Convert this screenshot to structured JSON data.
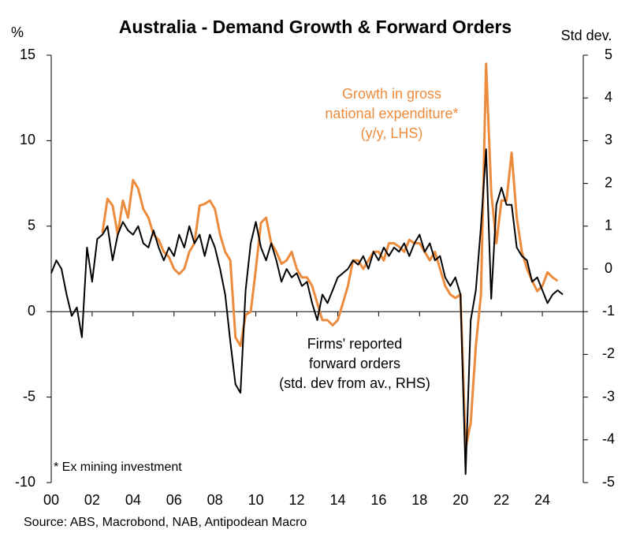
{
  "chart_data": {
    "type": "line",
    "title": "Australia - Demand Growth & Forward Orders",
    "y_label": "%",
    "y2_label": "Std dev.",
    "footnote": "* Ex mining investment",
    "source": "Source: ABS, Macrobond, NAB, Antipodean Macro",
    "xlim": [
      2000,
      2026
    ],
    "xticks": [
      {
        "value": 2000,
        "label": "00"
      },
      {
        "value": 2002,
        "label": "02"
      },
      {
        "value": 2004,
        "label": "04"
      },
      {
        "value": 2006,
        "label": "06"
      },
      {
        "value": 2008,
        "label": "08"
      },
      {
        "value": 2010,
        "label": "10"
      },
      {
        "value": 2012,
        "label": "12"
      },
      {
        "value": 2014,
        "label": "14"
      },
      {
        "value": 2016,
        "label": "16"
      },
      {
        "value": 2018,
        "label": "18"
      },
      {
        "value": 2020,
        "label": "20"
      },
      {
        "value": 2022,
        "label": "22"
      },
      {
        "value": 2024,
        "label": "24"
      }
    ],
    "ylim": [
      -10,
      15
    ],
    "yticks": [
      15,
      10,
      5,
      0,
      -5,
      -10
    ],
    "y2lim": [
      -5,
      5
    ],
    "y2ticks": [
      5,
      4,
      3,
      2,
      1,
      0,
      -1,
      -2,
      -3,
      -4,
      -5
    ],
    "series": [
      {
        "name": [
          "Growth in gross",
          "national expenditure*",
          "(y/y, LHS)"
        ],
        "color": "#ed8b3d",
        "axis": "y",
        "x": [
          2002.5,
          2002.75,
          2003,
          2003.25,
          2003.5,
          2003.75,
          2004,
          2004.25,
          2004.5,
          2004.75,
          2005,
          2005.25,
          2005.5,
          2005.75,
          2006,
          2006.25,
          2006.5,
          2006.75,
          2007,
          2007.25,
          2007.5,
          2007.75,
          2008,
          2008.25,
          2008.5,
          2008.75,
          2009,
          2009.25,
          2009.5,
          2009.75,
          2010,
          2010.25,
          2010.5,
          2010.75,
          2011,
          2011.25,
          2011.5,
          2011.75,
          2012,
          2012.25,
          2012.5,
          2012.75,
          2013,
          2013.25,
          2013.5,
          2013.75,
          2014,
          2014.25,
          2014.5,
          2014.75,
          2015,
          2015.25,
          2015.5,
          2015.75,
          2016,
          2016.25,
          2016.5,
          2016.75,
          2017,
          2017.25,
          2017.5,
          2017.75,
          2018,
          2018.25,
          2018.5,
          2018.75,
          2019,
          2019.25,
          2019.5,
          2019.75,
          2020,
          2020.25,
          2020.5,
          2020.75,
          2021,
          2021.25,
          2021.5,
          2021.75,
          2022,
          2022.25,
          2022.5,
          2022.75,
          2023,
          2023.25,
          2023.5,
          2023.75,
          2024,
          2024.25,
          2024.5,
          2024.75
        ],
        "values": [
          4.6,
          6.6,
          6.2,
          4.5,
          6.5,
          5.5,
          7.7,
          7.2,
          6.0,
          5.5,
          4.5,
          4.2,
          3.5,
          3.2,
          2.5,
          2.2,
          2.5,
          3.5,
          4.0,
          6.2,
          6.3,
          6.5,
          6.0,
          4.5,
          3.5,
          3.0,
          -1.5,
          -2.0,
          -0.2,
          0.0,
          2.5,
          5.2,
          5.5,
          4.0,
          3.5,
          2.8,
          3.0,
          3.5,
          2.5,
          2.0,
          2.0,
          1.5,
          0.5,
          -0.5,
          -0.5,
          -0.8,
          -0.5,
          0.5,
          1.5,
          3.0,
          3.0,
          2.5,
          3.0,
          3.5,
          3.5,
          3.0,
          4.0,
          4.0,
          3.8,
          3.5,
          4.2,
          4.0,
          4.0,
          3.5,
          3.0,
          3.5,
          2.5,
          1.5,
          1.0,
          0.8,
          1.0,
          -8.0,
          -6.5,
          -2.0,
          1.0,
          14.5,
          7.0,
          4.0,
          6.5,
          6.5,
          9.3,
          5.5,
          3.5,
          2.5,
          1.8,
          1.2,
          1.5,
          2.3,
          2.0,
          1.8
        ]
      },
      {
        "name": [
          "Firms' reported",
          "forward orders",
          "(std. dev from av., RHS)"
        ],
        "color": "#000000",
        "axis": "y2",
        "x": [
          2000,
          2000.25,
          2000.5,
          2000.75,
          2001,
          2001.25,
          2001.5,
          2001.75,
          2002,
          2002.25,
          2002.5,
          2002.75,
          2003,
          2003.25,
          2003.5,
          2003.75,
          2004,
          2004.25,
          2004.5,
          2004.75,
          2005,
          2005.25,
          2005.5,
          2005.75,
          2006,
          2006.25,
          2006.5,
          2006.75,
          2007,
          2007.25,
          2007.5,
          2007.75,
          2008,
          2008.25,
          2008.5,
          2008.75,
          2009,
          2009.25,
          2009.5,
          2009.75,
          2010,
          2010.25,
          2010.5,
          2010.75,
          2011,
          2011.25,
          2011.5,
          2011.75,
          2012,
          2012.25,
          2012.5,
          2012.75,
          2013,
          2013.25,
          2013.5,
          2013.75,
          2014,
          2014.25,
          2014.5,
          2014.75,
          2015,
          2015.25,
          2015.5,
          2015.75,
          2016,
          2016.25,
          2016.5,
          2016.75,
          2017,
          2017.25,
          2017.5,
          2017.75,
          2018,
          2018.25,
          2018.5,
          2018.75,
          2019,
          2019.25,
          2019.5,
          2019.75,
          2020,
          2020.25,
          2020.5,
          2020.75,
          2021,
          2021.25,
          2021.5,
          2021.75,
          2022,
          2022.25,
          2022.5,
          2022.75,
          2023,
          2023.25,
          2023.5,
          2023.75,
          2024,
          2024.25,
          2024.5,
          2024.75,
          2025
        ],
        "values": [
          -0.1,
          0.2,
          0.0,
          -0.6,
          -1.1,
          -0.9,
          -1.6,
          0.5,
          -0.3,
          0.7,
          0.8,
          1.0,
          0.2,
          0.8,
          1.1,
          0.9,
          0.8,
          1.0,
          0.6,
          0.5,
          0.9,
          0.5,
          0.2,
          0.5,
          0.3,
          0.8,
          0.5,
          1.0,
          0.6,
          0.8,
          0.3,
          0.8,
          0.5,
          0.0,
          -0.6,
          -1.7,
          -2.7,
          -2.9,
          -0.5,
          0.6,
          1.1,
          0.5,
          0.2,
          0.6,
          0.2,
          -0.3,
          0.0,
          -0.2,
          -0.1,
          -0.4,
          -0.3,
          -0.8,
          -1.2,
          -0.6,
          -0.8,
          -0.5,
          -0.2,
          -0.1,
          0.0,
          0.2,
          0.1,
          0.3,
          0.0,
          0.4,
          0.2,
          0.5,
          0.3,
          0.5,
          0.4,
          0.6,
          0.3,
          0.6,
          0.8,
          0.4,
          0.6,
          0.2,
          0.3,
          -0.2,
          -0.4,
          -0.2,
          -0.6,
          -4.8,
          -1.2,
          -0.5,
          1.0,
          2.8,
          -0.7,
          1.5,
          1.9,
          1.5,
          1.5,
          0.5,
          0.3,
          0.2,
          -0.3,
          -0.2,
          -0.5,
          -0.8,
          -0.6,
          -0.5,
          -0.6
        ]
      }
    ]
  }
}
